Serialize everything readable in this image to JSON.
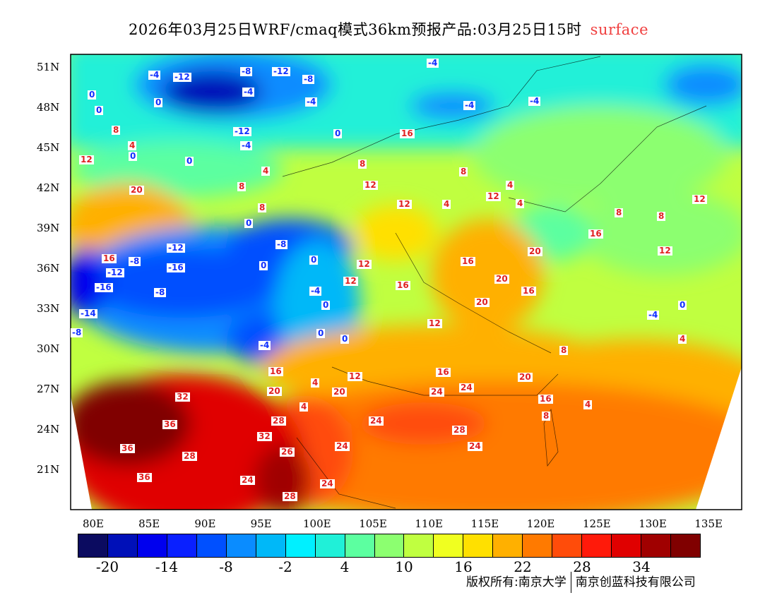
{
  "title": {
    "main": "2026年03月25日WRF/cmaq模式36km预报产品:03月25日15时",
    "level": "surface",
    "level_color": "#f04040"
  },
  "axes": {
    "lat_ticks": [
      "51N",
      "48N",
      "45N",
      "42N",
      "39N",
      "36N",
      "33N",
      "30N",
      "27N",
      "24N",
      "21N"
    ],
    "lon_ticks": [
      "80E",
      "85E",
      "90E",
      "95E",
      "100E",
      "105E",
      "110E",
      "115E",
      "120E",
      "125E",
      "130E",
      "135E"
    ]
  },
  "colorbar": {
    "colors": [
      "#0b0b60",
      "#0010b8",
      "#0000ee",
      "#0a20ff",
      "#0050ff",
      "#0a8cff",
      "#00b8f8",
      "#00f0ff",
      "#20f0d8",
      "#5cffa0",
      "#8cff70",
      "#c0ff40",
      "#f0ff20",
      "#ffe000",
      "#ffb000",
      "#ff7a00",
      "#ff4c0a",
      "#ff1a0a",
      "#e00000",
      "#a00000",
      "#800000"
    ],
    "labels": [
      "-20",
      "-14",
      "-8",
      "-2",
      "4",
      "10",
      "16",
      "22",
      "28",
      "34"
    ]
  },
  "contour_labels": [
    "-4",
    "-12",
    "-8",
    "-12",
    "-8",
    "-4",
    "-4",
    "-4",
    "-4",
    "-4",
    "0",
    "0",
    "0",
    "0",
    "-12",
    "-4",
    "8",
    "4",
    "12",
    "16",
    "8",
    "0",
    "0",
    "20",
    "4",
    "8",
    "12",
    "8",
    "4",
    "12",
    "4",
    "8",
    "0",
    "-12",
    "-8",
    "16",
    "-12",
    "-16",
    "-16",
    "-8",
    "0",
    "0",
    "12",
    "16",
    "16",
    "20",
    "16",
    "-4",
    "-8",
    "12",
    "-14",
    "-8",
    "0",
    "0",
    "-4",
    "0",
    "12",
    "16",
    "12",
    "20",
    "24",
    "20",
    "16",
    "20",
    "32",
    "36",
    "36",
    "28",
    "36",
    "24",
    "28",
    "24",
    "28",
    "32",
    "24",
    "28",
    "24",
    "26",
    "24",
    "20",
    "16",
    "24",
    "4",
    "8",
    "4",
    "4",
    "12",
    "4",
    "8",
    "8",
    "12",
    "16",
    "20",
    "12",
    "-4",
    "0",
    "4",
    "8"
  ],
  "footer": {
    "copyright": "版权所有:南京大学",
    "company": "南京创蓝科技有限公司"
  }
}
